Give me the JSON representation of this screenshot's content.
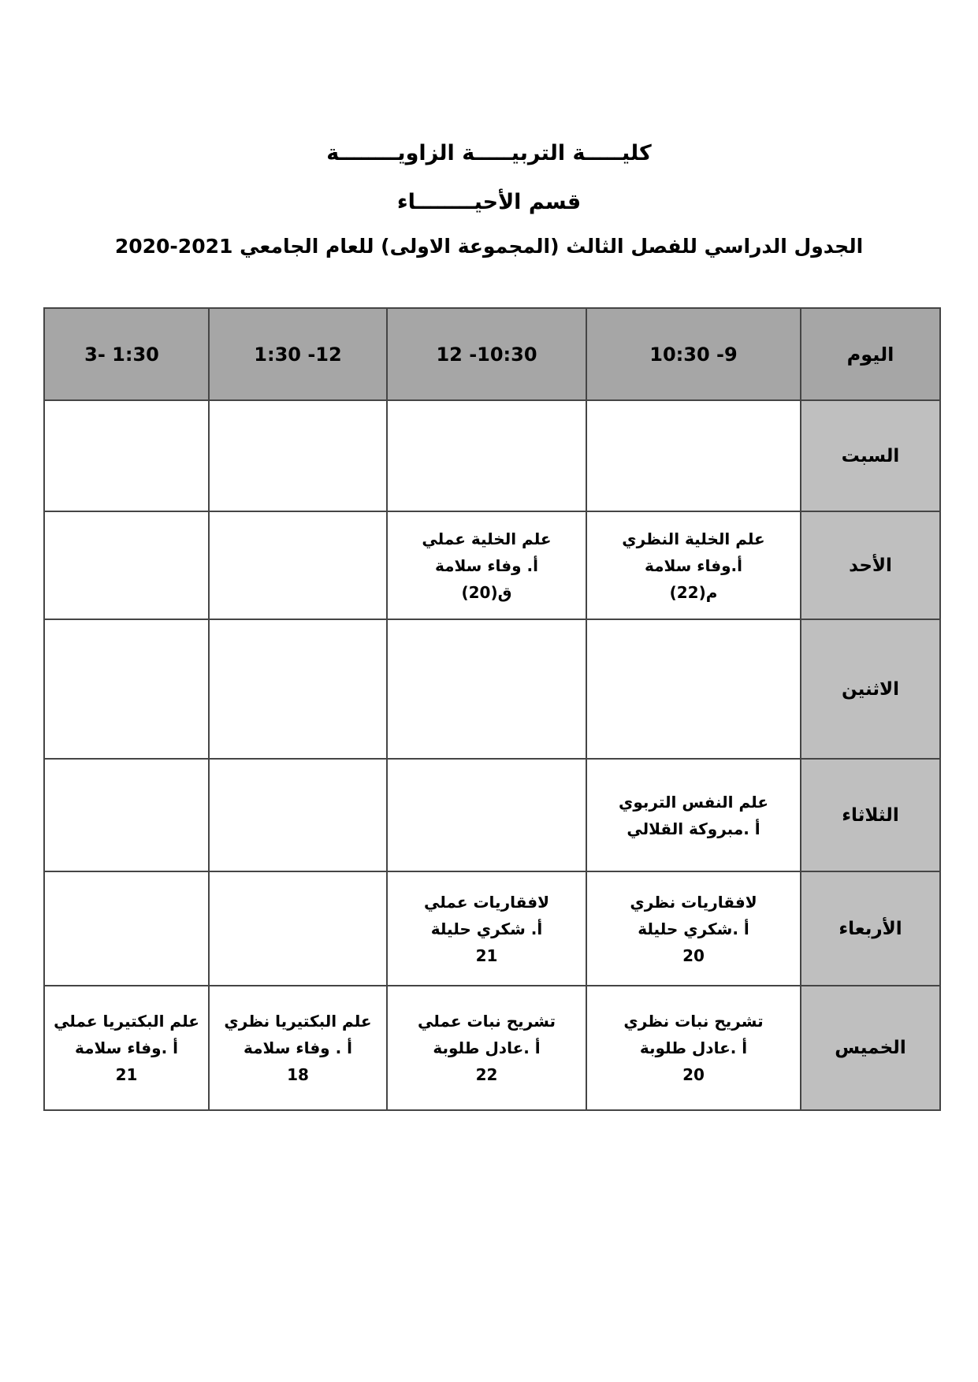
{
  "titles": {
    "line1": "كليـــــة التربيـــــة الزاويــــــــة",
    "line2": "قسم الأحيــــــــاء",
    "line3": "الجدول الدراسي للفصل الثالث  (المجموعة الاولى)  للعام الجامعي 2021-2020"
  },
  "table": {
    "day_header": "اليوم",
    "time_headers": [
      "10:30 -9",
      "12 -10:30",
      "1:30 -12",
      "3- 1:30"
    ],
    "rows": [
      {
        "day": "السبت",
        "cells": [
          [],
          [],
          [],
          []
        ]
      },
      {
        "day": "الأحد",
        "cells": [
          [
            "علم الخلية النظري",
            "أ.وفاء سلامة",
            "م(22)"
          ],
          [
            "علم الخلية عملي",
            "أ. وفاء سلامة",
            "ق(20)"
          ],
          [],
          []
        ]
      },
      {
        "day": "الاثنين",
        "cells": [
          [],
          [],
          [],
          []
        ]
      },
      {
        "day": "الثلاثاء",
        "cells": [
          [
            "علم النفس التربوي",
            "أ .مبروكة القلالي"
          ],
          [],
          [],
          []
        ]
      },
      {
        "day": "الأربعاء",
        "cells": [
          [
            "لافقاريات نظري",
            "أ .شكري حليلة",
            "20"
          ],
          [
            "لافقاريات عملي",
            "أ. شكري حليلة",
            "21"
          ],
          [],
          []
        ]
      },
      {
        "day": "الخميس",
        "cells": [
          [
            "تشريح نبات نظري",
            "أ .عادل طلوبة",
            "20"
          ],
          [
            "تشريح نبات عملي",
            "أ .عادل طلوبة",
            "22"
          ],
          [
            "علم البكتيريا نظري",
            "أ . وفاء سلامة",
            "18"
          ],
          [
            "علم البكتيريا عملي",
            "أ .وفاء سلامة",
            "21"
          ]
        ]
      }
    ]
  },
  "colors": {
    "header_bg": "#a6a6a6",
    "day_bg": "#bfbfbf",
    "border_color": "#454545",
    "text_color": "#000000",
    "page_bg": "#ffffff"
  }
}
